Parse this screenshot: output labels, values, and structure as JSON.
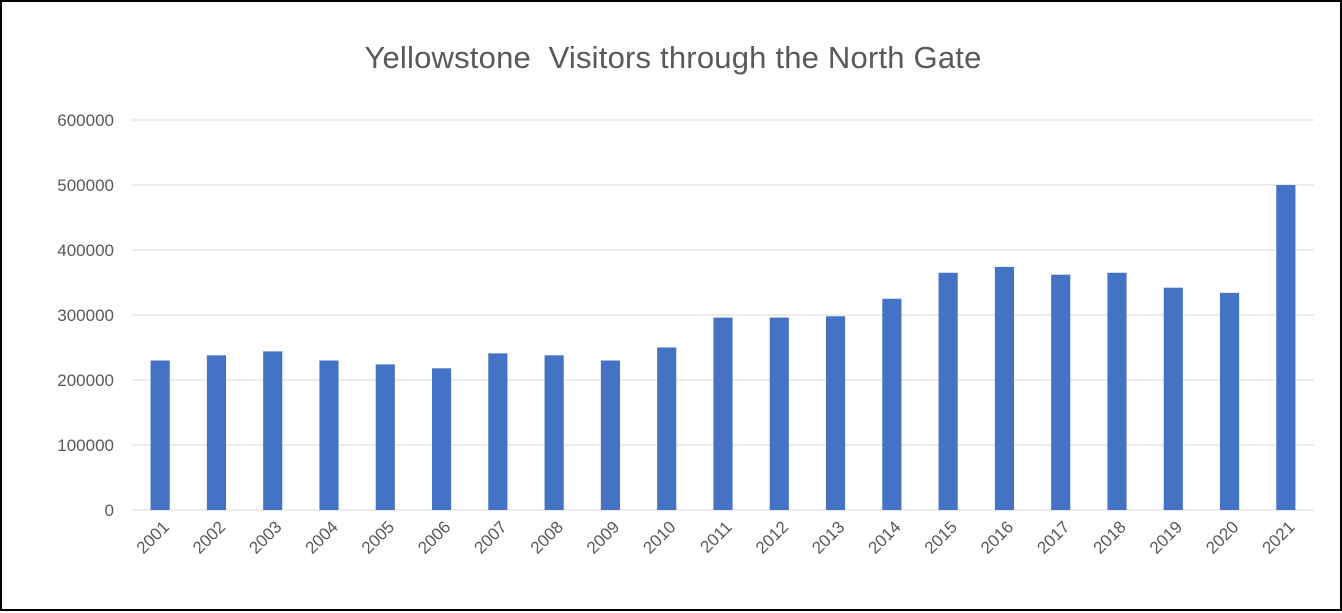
{
  "chart_data": {
    "type": "bar",
    "title": "Yellowstone  Visitors through the North Gate",
    "xlabel": "",
    "ylabel": "",
    "categories": [
      "2001",
      "2002",
      "2003",
      "2004",
      "2005",
      "2006",
      "2007",
      "2008",
      "2009",
      "2010",
      "2011",
      "2012",
      "2013",
      "2014",
      "2015",
      "2016",
      "2017",
      "2018",
      "2019",
      "2020",
      "2021"
    ],
    "values": [
      230000,
      238000,
      244000,
      230000,
      224000,
      218000,
      241000,
      238000,
      230000,
      250000,
      296000,
      296000,
      298000,
      325000,
      365000,
      374000,
      362000,
      365000,
      342000,
      334000,
      500000
    ],
    "ylim": [
      0,
      600000
    ],
    "yticks": [
      "0",
      "100000",
      "200000",
      "300000",
      "400000",
      "500000",
      "600000"
    ],
    "grid": true,
    "legend": "none",
    "colors": {
      "bar": "#4472C4",
      "grid": "#D9D9D9",
      "axis": "#D9D9D9",
      "text": "#595959",
      "border": "#000000"
    }
  }
}
